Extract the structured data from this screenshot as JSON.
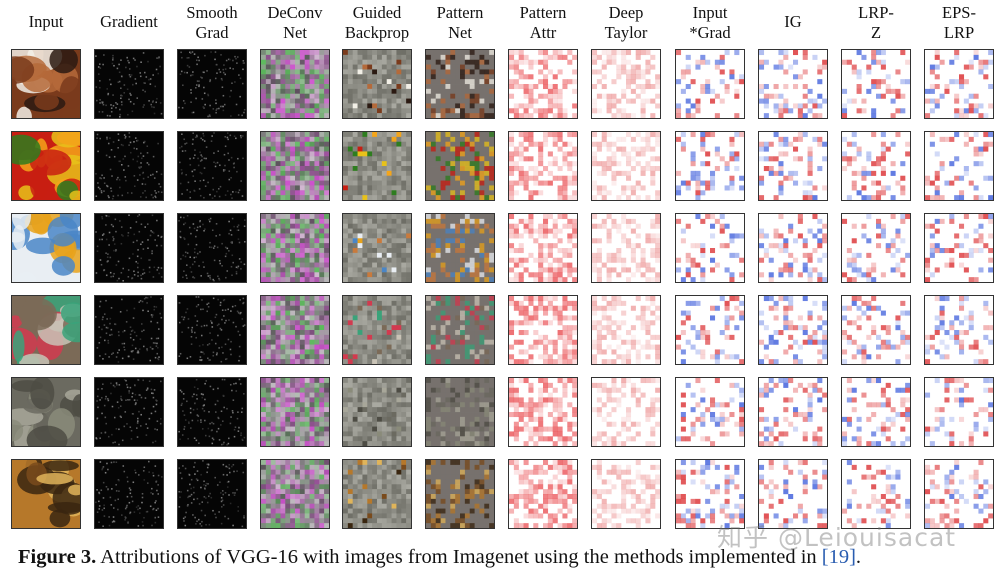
{
  "columns": [
    {
      "label": "Input",
      "style": "photo"
    },
    {
      "label": "Gradient",
      "style": "dark"
    },
    {
      "label": "Smooth\nGrad",
      "style": "dark"
    },
    {
      "label": "DeConv\nNet",
      "style": "noise"
    },
    {
      "label": "Guided\nBackprop",
      "style": "guided"
    },
    {
      "label": "Pattern\nNet",
      "style": "patternnet"
    },
    {
      "label": "Pattern\nAttr",
      "style": "red"
    },
    {
      "label": "Deep\nTaylor",
      "style": "lightred"
    },
    {
      "label": "Input\n*Grad",
      "style": "bwr"
    },
    {
      "label": "IG",
      "style": "bwr"
    },
    {
      "label": "LRP-\nZ",
      "style": "bwr"
    },
    {
      "label": "EPS-\nLRP",
      "style": "bwr"
    }
  ],
  "rows": [
    {
      "subject": "food tray with glasses",
      "palette": [
        "#7a3b1c",
        "#f2efe6",
        "#2b1a12",
        "#b56a3a"
      ]
    },
    {
      "subject": "bell peppers",
      "palette": [
        "#c81e12",
        "#f4a51a",
        "#2e7d1f",
        "#e8c21a"
      ]
    },
    {
      "subject": "plate with ice cream",
      "palette": [
        "#e9eef3",
        "#e7a21b",
        "#c97a3c",
        "#4a86c7"
      ]
    },
    {
      "subject": "market stall",
      "palette": [
        "#7b6a57",
        "#d23a4f",
        "#3aa37a",
        "#c9c3b6"
      ]
    },
    {
      "subject": "cemetery scene",
      "palette": [
        "#6b6a60",
        "#8a8b7a",
        "#4d4c44",
        "#a8a79a"
      ]
    },
    {
      "subject": "fried food platter",
      "palette": [
        "#b6782a",
        "#3a2610",
        "#e0b45a",
        "#7a4b1c"
      ]
    }
  ],
  "caption": {
    "label": "Figure 3.",
    "text": " Attributions of VGG-16 with images from Imagenet using the methods implemented in ",
    "ref": "[19]",
    "end": "."
  },
  "watermark": "知乎 @Leiouisacat",
  "colors": {
    "border": "#333333",
    "ref_link": "#2a5db0",
    "positive": "#d7191c",
    "negative": "#2c4fd8"
  }
}
